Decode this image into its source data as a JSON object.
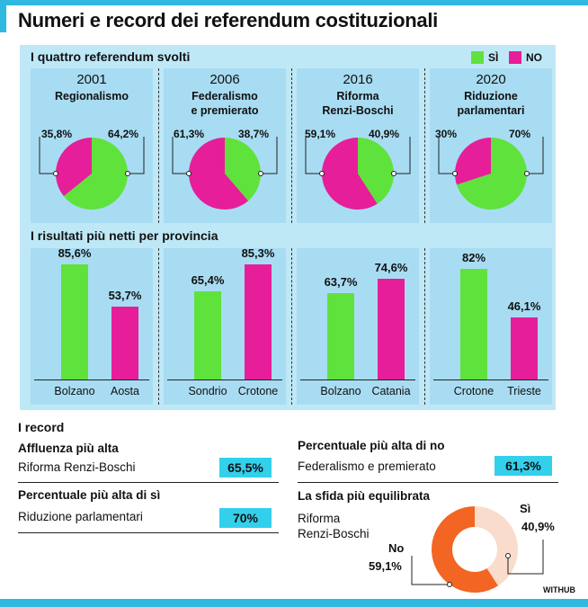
{
  "title": "Numeri e record dei referendum costituzionali",
  "section1_title": "I quattro referendum svolti",
  "legend": [
    {
      "label": "SÌ",
      "color": "#5fe23c"
    },
    {
      "label": "NO",
      "color": "#e61e9a"
    }
  ],
  "colors": {
    "yes": "#5fe23c",
    "no": "#e61e9a",
    "panel": "#bfe8f7",
    "cell": "#a8dcf2",
    "accent": "#33d0ec",
    "donut_no": "#f26522",
    "donut_si": "#f9dccb"
  },
  "referendums": [
    {
      "year": "2001",
      "name_line1": "Regionalismo",
      "name_line2": "",
      "no_label": "35,8%",
      "si_label": "64,2%"
    },
    {
      "year": "2006",
      "name_line1": "Federalismo",
      "name_line2": "e premierato",
      "no_label": "61,3%",
      "si_label": "38,7%"
    },
    {
      "year": "2016",
      "name_line1": "Riforma",
      "name_line2": "Renzi-Boschi",
      "no_label": "59,1%",
      "si_label": "40,9%"
    },
    {
      "year": "2020",
      "name_line1": "Riduzione",
      "name_line2": "parlamentari",
      "no_label": "30%",
      "si_label": "70%"
    }
  ],
  "section2_title": "I risultati più netti per provincia",
  "chart_data": [
    {
      "type": "pie",
      "charts": [
        {
          "title": "2001 Regionalismo",
          "slices": [
            {
              "name": "SÌ",
              "value": 64.2
            },
            {
              "name": "NO",
              "value": 35.8
            }
          ]
        },
        {
          "title": "2006 Federalismo e premierato",
          "slices": [
            {
              "name": "SÌ",
              "value": 38.7
            },
            {
              "name": "NO",
              "value": 61.3
            }
          ]
        },
        {
          "title": "2016 Riforma Renzi-Boschi",
          "slices": [
            {
              "name": "SÌ",
              "value": 40.9
            },
            {
              "name": "NO",
              "value": 59.1
            }
          ]
        },
        {
          "title": "2020 Riduzione parlamentari",
          "slices": [
            {
              "name": "SÌ",
              "value": 70
            },
            {
              "name": "NO",
              "value": 30
            }
          ]
        }
      ]
    },
    {
      "type": "bar",
      "title": "I risultati più netti per provincia",
      "ylim": [
        0,
        100
      ],
      "groups": [
        {
          "bars": [
            {
              "category": "Bolzano",
              "value": 85.6,
              "label": "85,6%",
              "series": "SÌ"
            },
            {
              "category": "Aosta",
              "value": 53.7,
              "label": "53,7%",
              "series": "NO"
            }
          ]
        },
        {
          "bars": [
            {
              "category": "Sondrio",
              "value": 65.4,
              "label": "65,4%",
              "series": "SÌ"
            },
            {
              "category": "Crotone",
              "value": 85.3,
              "label": "85,3%",
              "series": "NO"
            }
          ]
        },
        {
          "bars": [
            {
              "category": "Bolzano",
              "value": 63.7,
              "label": "63,7%",
              "series": "SÌ"
            },
            {
              "category": "Catania",
              "value": 74.6,
              "label": "74,6%",
              "series": "NO"
            }
          ]
        },
        {
          "bars": [
            {
              "category": "Crotone",
              "value": 82,
              "label": "82%",
              "series": "SÌ"
            },
            {
              "category": "Trieste",
              "value": 46.1,
              "label": "46,1%",
              "series": "NO"
            }
          ]
        }
      ]
    },
    {
      "type": "pie",
      "title": "La sfida più equilibrata",
      "subtitle": "Riforma Renzi-Boschi",
      "slices": [
        {
          "name": "Sì",
          "value": 40.9,
          "label": "40,9%"
        },
        {
          "name": "No",
          "value": 59.1,
          "label": "59,1%"
        }
      ]
    }
  ],
  "records": {
    "title": "I record",
    "affluenza_label": "Affluenza più alta",
    "affluenza_sub": "Riforma Renzi-Boschi",
    "affluenza_value": "65,5%",
    "max_si_label": "Percentuale più alta di sì",
    "max_si_sub": "Riduzione parlamentari",
    "max_si_value": "70%",
    "max_no_label": "Percentuale più alta di no",
    "max_no_sub": "Federalismo e premierato",
    "max_no_value": "61,3%",
    "sfida_label": "La sfida più equilibrata",
    "sfida_sub1": "Riforma",
    "sfida_sub2": "Renzi-Boschi",
    "sfida_si_name": "Sì",
    "sfida_si_value": "40,9%",
    "sfida_no_name": "No",
    "sfida_no_value": "59,1%"
  },
  "credit": "WITHUB"
}
